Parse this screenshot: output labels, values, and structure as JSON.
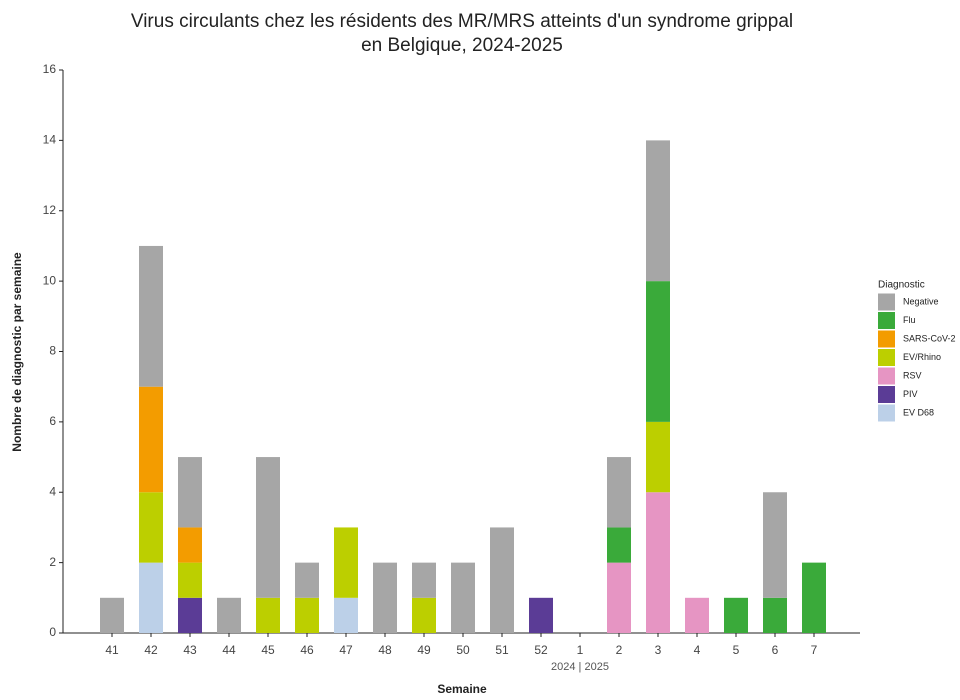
{
  "chart_data": {
    "type": "stacked_bar",
    "title": [
      "Virus circulants chez les résidents des MR/MRS atteints d'un syndrome grippal",
      "en Belgique, 2024-2025"
    ],
    "x_label": "Semaine",
    "y_label": "Nombre de diagnostic par semaine",
    "annotation": "2024 | 2025",
    "legend_title": "Diagnostic",
    "legend_position": "right",
    "categories": [
      "41",
      "42",
      "43",
      "44",
      "45",
      "46",
      "47",
      "48",
      "49",
      "50",
      "51",
      "52",
      "1",
      "2",
      "3",
      "4",
      "5",
      "6",
      "7"
    ],
    "ylim": [
      0,
      16
    ],
    "yticks": [
      0,
      2,
      4,
      6,
      8,
      10,
      12,
      14,
      16
    ],
    "series": [
      {
        "name": "Negative",
        "color": "#a6a6a6",
        "values": [
          1,
          4,
          2,
          1,
          4,
          1,
          0,
          2,
          1,
          2,
          3,
          0,
          0,
          2,
          4,
          0,
          0,
          3,
          0
        ]
      },
      {
        "name": "Flu",
        "color": "#3aaa3a",
        "values": [
          0,
          0,
          0,
          0,
          0,
          0,
          0,
          0,
          0,
          0,
          0,
          0,
          0,
          1,
          4,
          0,
          1,
          1,
          2
        ]
      },
      {
        "name": "SARS-CoV-2",
        "color": "#f39c00",
        "values": [
          0,
          3,
          1,
          0,
          0,
          0,
          0,
          0,
          0,
          0,
          0,
          0,
          0,
          0,
          0,
          0,
          0,
          0,
          0
        ]
      },
      {
        "name": "EV/Rhino",
        "color": "#bccf00",
        "values": [
          0,
          2,
          1,
          0,
          1,
          1,
          2,
          0,
          1,
          0,
          0,
          0,
          0,
          0,
          2,
          0,
          0,
          0,
          0
        ]
      },
      {
        "name": "RSV",
        "color": "#e695c3",
        "values": [
          0,
          0,
          0,
          0,
          0,
          0,
          0,
          0,
          0,
          0,
          0,
          0,
          0,
          2,
          4,
          1,
          0,
          0,
          0
        ]
      },
      {
        "name": "PIV",
        "color": "#5b3c96",
        "values": [
          0,
          0,
          1,
          0,
          0,
          0,
          0,
          0,
          0,
          0,
          0,
          1,
          0,
          0,
          0,
          0,
          0,
          0,
          0
        ]
      },
      {
        "name": "EV D68",
        "color": "#bcd0e8",
        "values": [
          0,
          2,
          0,
          0,
          0,
          0,
          1,
          0,
          0,
          0,
          0,
          0,
          0,
          0,
          0,
          0,
          0,
          0,
          0
        ]
      }
    ]
  }
}
